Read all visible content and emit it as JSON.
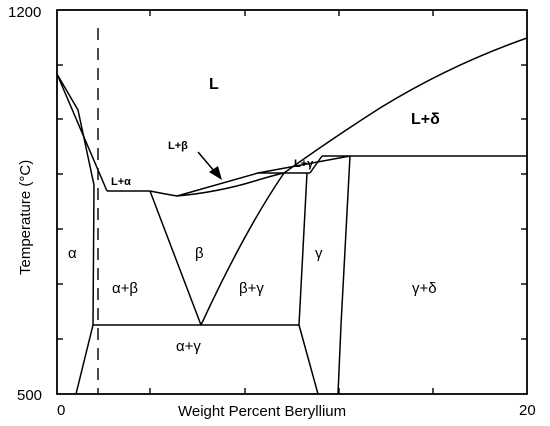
{
  "axes": {
    "x_label": "Weight Percent Beryllium",
    "y_label": "Temperature (°C)",
    "x_ticks": [
      "0",
      "20"
    ],
    "y_ticks": [
      "1200",
      "500"
    ]
  },
  "regions": {
    "L": "L",
    "L_delta": "L+δ",
    "L_beta": "L+β",
    "L_alpha": "L+α",
    "L_gamma": "L+γ",
    "alpha": "α",
    "alpha_beta": "α+β",
    "beta": "β",
    "beta_gamma": "β+γ",
    "gamma": "γ",
    "gamma_delta": "γ+δ",
    "alpha_gamma": "α+γ"
  }
}
